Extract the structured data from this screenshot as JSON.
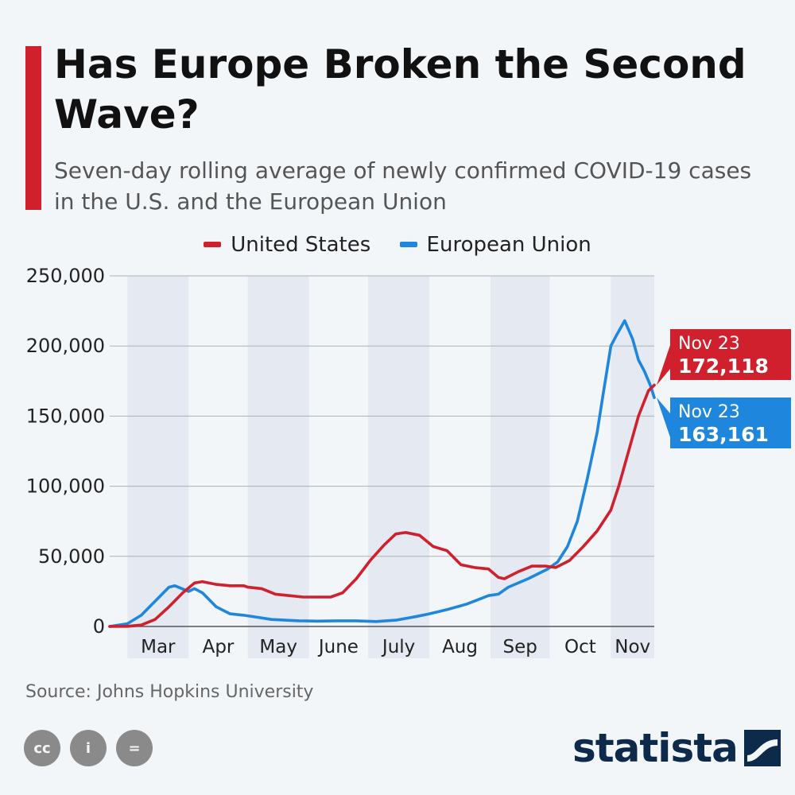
{
  "header": {
    "title": "Has Europe Broken the Second Wave?",
    "subtitle": "Seven-day rolling average of newly confirmed COVID-19 cases in the U.S. and the European Union"
  },
  "colors": {
    "us": "#d0202e",
    "eu": "#1f86de",
    "band": "#e4e9f2",
    "grid": "#a9b2bc",
    "accent": "#d0202e",
    "brand": "#0d2a4a"
  },
  "footer": {
    "source": "Source: Johns Hopkins University",
    "brand": "statista",
    "license_icons": [
      "cc-icon",
      "attribution-icon",
      "no-derivatives-icon"
    ],
    "license_glyphs": [
      "cc",
      "i",
      "="
    ]
  },
  "chart_data": {
    "type": "line",
    "title": "Has Europe Broken the Second Wave?",
    "ylim": [
      0,
      250000
    ],
    "yticks": [
      0,
      50000,
      100000,
      150000,
      200000,
      250000
    ],
    "ytick_labels": [
      "0",
      "50,000",
      "100,000",
      "150,000",
      "200,000",
      "250,000"
    ],
    "xlim": [
      "2020-02-21",
      "2020-11-23"
    ],
    "months": [
      {
        "label": "Mar",
        "start": "2020-03-01",
        "end": "2020-03-31",
        "shaded": true
      },
      {
        "label": "Apr",
        "start": "2020-04-01",
        "end": "2020-04-30",
        "shaded": false
      },
      {
        "label": "May",
        "start": "2020-05-01",
        "end": "2020-05-31",
        "shaded": true
      },
      {
        "label": "June",
        "start": "2020-06-01",
        "end": "2020-06-30",
        "shaded": false
      },
      {
        "label": "July",
        "start": "2020-07-01",
        "end": "2020-07-31",
        "shaded": true
      },
      {
        "label": "Aug",
        "start": "2020-08-01",
        "end": "2020-08-31",
        "shaded": false
      },
      {
        "label": "Sep",
        "start": "2020-09-01",
        "end": "2020-09-30",
        "shaded": true
      },
      {
        "label": "Oct",
        "start": "2020-10-01",
        "end": "2020-10-31",
        "shaded": false
      },
      {
        "label": "Nov",
        "start": "2020-11-01",
        "end": "2020-11-23",
        "shaded": true
      }
    ],
    "legend": [
      "United States",
      "European Union"
    ],
    "grid": true,
    "series": [
      {
        "name": "United States",
        "color": "#d0202e",
        "points": [
          [
            "2020-02-21",
            0
          ],
          [
            "2020-03-01",
            100
          ],
          [
            "2020-03-08",
            1000
          ],
          [
            "2020-03-15",
            5000
          ],
          [
            "2020-03-22",
            14000
          ],
          [
            "2020-03-29",
            24000
          ],
          [
            "2020-04-04",
            31000
          ],
          [
            "2020-04-08",
            32000
          ],
          [
            "2020-04-15",
            30000
          ],
          [
            "2020-04-22",
            29000
          ],
          [
            "2020-04-29",
            29000
          ],
          [
            "2020-05-01",
            28000
          ],
          [
            "2020-05-08",
            27000
          ],
          [
            "2020-05-15",
            23000
          ],
          [
            "2020-05-22",
            22000
          ],
          [
            "2020-05-29",
            21000
          ],
          [
            "2020-06-05",
            21000
          ],
          [
            "2020-06-12",
            21000
          ],
          [
            "2020-06-18",
            24000
          ],
          [
            "2020-06-25",
            34000
          ],
          [
            "2020-07-02",
            47000
          ],
          [
            "2020-07-09",
            58000
          ],
          [
            "2020-07-15",
            66000
          ],
          [
            "2020-07-20",
            67000
          ],
          [
            "2020-07-27",
            65000
          ],
          [
            "2020-08-03",
            57000
          ],
          [
            "2020-08-10",
            54000
          ],
          [
            "2020-08-17",
            44000
          ],
          [
            "2020-08-24",
            42000
          ],
          [
            "2020-08-31",
            41000
          ],
          [
            "2020-09-05",
            35000
          ],
          [
            "2020-09-08",
            34000
          ],
          [
            "2020-09-15",
            39000
          ],
          [
            "2020-09-22",
            43000
          ],
          [
            "2020-09-29",
            43000
          ],
          [
            "2020-10-04",
            42000
          ],
          [
            "2020-10-11",
            47000
          ],
          [
            "2020-10-18",
            57000
          ],
          [
            "2020-10-25",
            68000
          ],
          [
            "2020-11-01",
            83000
          ],
          [
            "2020-11-05",
            100000
          ],
          [
            "2020-11-10",
            125000
          ],
          [
            "2020-11-15",
            150000
          ],
          [
            "2020-11-20",
            168000
          ],
          [
            "2020-11-23",
            172118
          ]
        ]
      },
      {
        "name": "European Union",
        "color": "#1f86de",
        "points": [
          [
            "2020-02-21",
            0
          ],
          [
            "2020-03-01",
            2000
          ],
          [
            "2020-03-08",
            8000
          ],
          [
            "2020-03-15",
            18000
          ],
          [
            "2020-03-22",
            28000
          ],
          [
            "2020-03-25",
            29000
          ],
          [
            "2020-04-01",
            25000
          ],
          [
            "2020-04-04",
            27000
          ],
          [
            "2020-04-08",
            24000
          ],
          [
            "2020-04-15",
            14000
          ],
          [
            "2020-04-22",
            9000
          ],
          [
            "2020-04-29",
            8000
          ],
          [
            "2020-05-06",
            6500
          ],
          [
            "2020-05-13",
            5000
          ],
          [
            "2020-05-20",
            4500
          ],
          [
            "2020-05-27",
            4000
          ],
          [
            "2020-06-05",
            3800
          ],
          [
            "2020-06-15",
            4000
          ],
          [
            "2020-06-25",
            4000
          ],
          [
            "2020-07-05",
            3500
          ],
          [
            "2020-07-15",
            4500
          ],
          [
            "2020-07-25",
            7000
          ],
          [
            "2020-08-01",
            9000
          ],
          [
            "2020-08-10",
            12000
          ],
          [
            "2020-08-20",
            16000
          ],
          [
            "2020-08-31",
            22000
          ],
          [
            "2020-09-05",
            23000
          ],
          [
            "2020-09-10",
            28000
          ],
          [
            "2020-09-20",
            34000
          ],
          [
            "2020-09-30",
            41000
          ],
          [
            "2020-10-05",
            46000
          ],
          [
            "2020-10-10",
            57000
          ],
          [
            "2020-10-15",
            75000
          ],
          [
            "2020-10-20",
            105000
          ],
          [
            "2020-10-25",
            138000
          ],
          [
            "2020-10-28",
            165000
          ],
          [
            "2020-11-01",
            200000
          ],
          [
            "2020-11-04",
            208000
          ],
          [
            "2020-11-08",
            218000
          ],
          [
            "2020-11-12",
            205000
          ],
          [
            "2020-11-15",
            190000
          ],
          [
            "2020-11-18",
            182000
          ],
          [
            "2020-11-21",
            172000
          ],
          [
            "2020-11-23",
            163161
          ]
        ]
      }
    ],
    "annotations": [
      {
        "series": "United States",
        "date_label": "Nov 23",
        "value_label": "172,118",
        "value": 172118
      },
      {
        "series": "European Union",
        "date_label": "Nov 23",
        "value_label": "163,161",
        "value": 163161
      }
    ]
  }
}
